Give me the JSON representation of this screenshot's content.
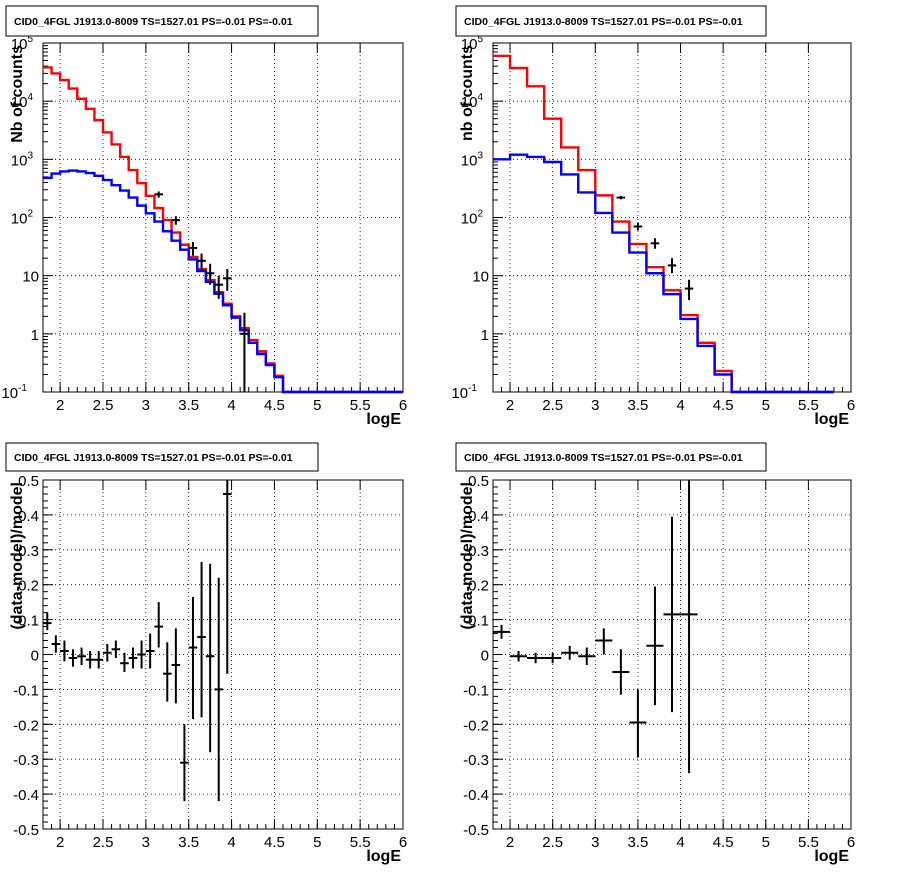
{
  "chart_data": [
    {
      "type": "line",
      "title": "CID0_4FGL J1913.0-8009 TS=1527.01 PS=-0.01 PS=-0.01",
      "xlabel": "logE",
      "ylabel": "Nb of counts",
      "xlim": [
        1.8,
        6.0
      ],
      "ylim": [
        0.1,
        100000
      ],
      "yscale": "log",
      "grid": true,
      "xticks": [
        "2",
        "2.5",
        "3",
        "3.5",
        "4",
        "4.5",
        "5",
        "5.5",
        "6"
      ],
      "yticks": [
        "10^-1",
        "1",
        "10",
        "10^2",
        "10^3",
        "10^4",
        "10^5"
      ],
      "bin_edges": [
        1.8,
        1.9,
        2.0,
        2.1,
        2.2,
        2.3,
        2.4,
        2.5,
        2.6,
        2.7,
        2.8,
        2.9,
        3.0,
        3.1,
        3.2,
        3.3,
        3.4,
        3.5,
        3.6,
        3.7,
        3.8,
        3.9,
        4.0,
        4.1,
        4.2,
        4.3,
        4.4,
        4.5,
        4.6,
        4.7,
        4.8,
        4.9,
        5.0,
        5.1,
        5.2,
        5.3,
        5.4,
        5.5,
        5.6,
        5.7,
        5.8,
        5.9,
        6.0
      ],
      "series": [
        {
          "color": "#ff0000",
          "values": [
            38000,
            30000,
            23000,
            16500,
            11000,
            7400,
            4700,
            2900,
            1800,
            1100,
            650,
            390,
            235,
            145,
            90,
            55,
            34,
            21,
            13,
            8.4,
            5.2,
            3.3,
            2.0,
            1.25,
            0.78,
            0.5,
            0.31,
            0.19,
            0.1,
            0.1,
            0.1,
            0.1,
            0.1,
            0.1,
            0.1,
            0.1,
            0.1,
            0.1,
            0.1,
            0.1,
            0.1,
            0.1
          ]
        },
        {
          "color": "#0000ff",
          "values": [
            480,
            570,
            620,
            640,
            620,
            580,
            520,
            440,
            360,
            290,
            220,
            160,
            118,
            85,
            58,
            40,
            28,
            19,
            12,
            7.8,
            4.9,
            3.1,
            1.9,
            1.15,
            0.7,
            0.45,
            0.29,
            0.18,
            0.1,
            0.1,
            0.1,
            0.1,
            0.1,
            0.1,
            0.1,
            0.1,
            0.1,
            0.1,
            0.1,
            0.1,
            0.1,
            0.1
          ]
        }
      ],
      "points": [
        {
          "x": 3.15,
          "y": 250,
          "ylo": 220,
          "yhi": 280
        },
        {
          "x": 3.35,
          "y": 90,
          "ylo": 75,
          "yhi": 105
        },
        {
          "x": 3.55,
          "y": 30,
          "ylo": 22,
          "yhi": 38
        },
        {
          "x": 3.65,
          "y": 18,
          "ylo": 12,
          "yhi": 24
        },
        {
          "x": 3.75,
          "y": 11,
          "ylo": 7,
          "yhi": 16
        },
        {
          "x": 3.85,
          "y": 7,
          "ylo": 4,
          "yhi": 10
        },
        {
          "x": 3.95,
          "y": 9,
          "ylo": 5.5,
          "yhi": 13
        },
        {
          "x": 4.15,
          "y": 1,
          "ylo": 0.1,
          "yhi": 2.3
        }
      ]
    },
    {
      "type": "line",
      "title": "CID0_4FGL J1913.0-8009 TS=1527.01 PS=-0.01 PS=-0.01",
      "xlabel": "logE",
      "ylabel": "nb of counts",
      "xlim": [
        1.8,
        6.0
      ],
      "ylim": [
        0.1,
        100000
      ],
      "yscale": "log",
      "grid": true,
      "xticks": [
        "2",
        "2.5",
        "3",
        "3.5",
        "4",
        "4.5",
        "5",
        "5.5",
        "6"
      ],
      "yticks": [
        "10^-1",
        "1",
        "10",
        "10^2",
        "10^3",
        "10^4",
        "10^5"
      ],
      "bin_edges": [
        1.8,
        2.0,
        2.2,
        2.4,
        2.6,
        2.8,
        3.0,
        3.2,
        3.4,
        3.6,
        3.8,
        4.0,
        4.2,
        4.4,
        4.6,
        4.8,
        5.0,
        5.2,
        5.4,
        5.6,
        5.8,
        6.0
      ],
      "series": [
        {
          "color": "#ff0000",
          "values": [
            60000,
            37000,
            18000,
            5000,
            1600,
            650,
            240,
            85,
            35,
            14,
            5.6,
            2.1,
            0.7,
            0.23,
            0.1,
            0.1,
            0.1,
            0.1,
            0.1,
            0.1
          ]
        },
        {
          "color": "#0000ff",
          "values": [
            1000,
            1200,
            1100,
            900,
            550,
            270,
            120,
            55,
            25,
            11,
            4.8,
            1.8,
            0.62,
            0.2,
            0.1,
            0.1,
            0.1,
            0.1,
            0.1,
            0.1
          ]
        }
      ],
      "points": [
        {
          "x": 3.3,
          "y": 220,
          "ylo": 205,
          "yhi": 235
        },
        {
          "x": 3.5,
          "y": 70,
          "ylo": 60,
          "yhi": 82
        },
        {
          "x": 3.7,
          "y": 36,
          "ylo": 29,
          "yhi": 44
        },
        {
          "x": 3.9,
          "y": 15,
          "ylo": 11,
          "yhi": 20
        },
        {
          "x": 4.1,
          "y": 6,
          "ylo": 3.8,
          "yhi": 8.5
        }
      ]
    },
    {
      "type": "scatter",
      "title": "CID0_4FGL J1913.0-8009 TS=1527.01 PS=-0.01 PS=-0.01",
      "xlabel": "logE",
      "ylabel": "(data-model)/model",
      "xlim": [
        1.8,
        6.0
      ],
      "ylim": [
        -0.5,
        0.5
      ],
      "grid": true,
      "xticks": [
        "2",
        "2.5",
        "3",
        "3.5",
        "4",
        "4.5",
        "5",
        "5.5",
        "6"
      ],
      "yticks": [
        "-0.5",
        "-0.4",
        "-0.3",
        "-0.2",
        "-0.1",
        "0",
        "0.1",
        "0.2",
        "0.3",
        "0.4",
        "0.5"
      ],
      "points": [
        {
          "x": 1.85,
          "y": 0.09,
          "ylo": 0.07,
          "yhi": 0.12,
          "xerr": 0.05
        },
        {
          "x": 1.95,
          "y": 0.03,
          "ylo": 0.005,
          "yhi": 0.055,
          "xerr": 0.05
        },
        {
          "x": 2.05,
          "y": 0.01,
          "ylo": -0.02,
          "yhi": 0.04,
          "xerr": 0.05
        },
        {
          "x": 2.15,
          "y": -0.01,
          "ylo": -0.035,
          "yhi": 0.015,
          "xerr": 0.05
        },
        {
          "x": 2.25,
          "y": -0.005,
          "ylo": -0.03,
          "yhi": 0.02,
          "xerr": 0.05
        },
        {
          "x": 2.35,
          "y": -0.015,
          "ylo": -0.04,
          "yhi": 0.01,
          "xerr": 0.05
        },
        {
          "x": 2.45,
          "y": -0.015,
          "ylo": -0.04,
          "yhi": 0.01,
          "xerr": 0.05
        },
        {
          "x": 2.55,
          "y": 0.005,
          "ylo": -0.02,
          "yhi": 0.03,
          "xerr": 0.05
        },
        {
          "x": 2.65,
          "y": 0.015,
          "ylo": -0.01,
          "yhi": 0.04,
          "xerr": 0.05
        },
        {
          "x": 2.75,
          "y": -0.025,
          "ylo": -0.05,
          "yhi": 0.005,
          "xerr": 0.05
        },
        {
          "x": 2.85,
          "y": -0.01,
          "ylo": -0.04,
          "yhi": 0.02,
          "xerr": 0.05
        },
        {
          "x": 2.95,
          "y": 0.0,
          "ylo": -0.04,
          "yhi": 0.04,
          "xerr": 0.05
        },
        {
          "x": 3.05,
          "y": 0.01,
          "ylo": -0.04,
          "yhi": 0.06,
          "xerr": 0.05
        },
        {
          "x": 3.15,
          "y": 0.08,
          "ylo": 0.02,
          "yhi": 0.15,
          "xerr": 0.05
        },
        {
          "x": 3.25,
          "y": -0.055,
          "ylo": -0.135,
          "yhi": 0.035,
          "xerr": 0.05
        },
        {
          "x": 3.35,
          "y": -0.03,
          "ylo": -0.14,
          "yhi": 0.075,
          "xerr": 0.05
        },
        {
          "x": 3.45,
          "y": -0.31,
          "ylo": -0.42,
          "yhi": -0.2,
          "xerr": 0.05
        },
        {
          "x": 3.55,
          "y": 0.02,
          "ylo": -0.185,
          "yhi": 0.165,
          "xerr": 0.05
        },
        {
          "x": 3.65,
          "y": 0.05,
          "ylo": -0.18,
          "yhi": 0.265,
          "xerr": 0.05
        },
        {
          "x": 3.75,
          "y": -0.005,
          "ylo": -0.28,
          "yhi": 0.26,
          "xerr": 0.05
        },
        {
          "x": 3.85,
          "y": -0.1,
          "ylo": -0.42,
          "yhi": 0.22,
          "xerr": 0.05
        },
        {
          "x": 3.95,
          "y": 0.46,
          "ylo": -0.055,
          "yhi": 0.5,
          "xerr": 0.05
        }
      ]
    },
    {
      "type": "scatter",
      "title": "CID0_4FGL J1913.0-8009 TS=1527.01 PS=-0.01 PS=-0.01",
      "xlabel": "logE",
      "ylabel": "(data-model)/model",
      "xlim": [
        1.8,
        6.0
      ],
      "ylim": [
        -0.5,
        0.5
      ],
      "grid": true,
      "xticks": [
        "2",
        "2.5",
        "3",
        "3.5",
        "4",
        "4.5",
        "5",
        "5.5",
        "6"
      ],
      "yticks": [
        "-0.5",
        "-0.4",
        "-0.3",
        "-0.2",
        "-0.1",
        "0",
        "0.1",
        "0.2",
        "0.3",
        "0.4",
        "0.5"
      ],
      "points": [
        {
          "x": 1.9,
          "y": 0.065,
          "ylo": 0.045,
          "yhi": 0.085,
          "xerr": 0.1
        },
        {
          "x": 2.1,
          "y": -0.005,
          "ylo": -0.02,
          "yhi": 0.01,
          "xerr": 0.1
        },
        {
          "x": 2.3,
          "y": -0.01,
          "ylo": -0.025,
          "yhi": 0.005,
          "xerr": 0.1
        },
        {
          "x": 2.5,
          "y": -0.01,
          "ylo": -0.025,
          "yhi": 0.005,
          "xerr": 0.1
        },
        {
          "x": 2.7,
          "y": 0.005,
          "ylo": -0.015,
          "yhi": 0.025,
          "xerr": 0.1
        },
        {
          "x": 2.9,
          "y": -0.005,
          "ylo": -0.03,
          "yhi": 0.02,
          "xerr": 0.1
        },
        {
          "x": 3.1,
          "y": 0.04,
          "ylo": 0.0,
          "yhi": 0.075,
          "xerr": 0.1
        },
        {
          "x": 3.3,
          "y": -0.05,
          "ylo": -0.115,
          "yhi": 0.015,
          "xerr": 0.1
        },
        {
          "x": 3.5,
          "y": -0.195,
          "ylo": -0.295,
          "yhi": -0.1,
          "xerr": 0.1
        },
        {
          "x": 3.7,
          "y": 0.025,
          "ylo": -0.145,
          "yhi": 0.195,
          "xerr": 0.1
        },
        {
          "x": 3.9,
          "y": 0.115,
          "ylo": -0.165,
          "yhi": 0.395,
          "xerr": 0.1
        },
        {
          "x": 4.1,
          "y": 0.115,
          "ylo": -0.34,
          "yhi": 0.5,
          "xerr": 0.1
        }
      ]
    }
  ]
}
